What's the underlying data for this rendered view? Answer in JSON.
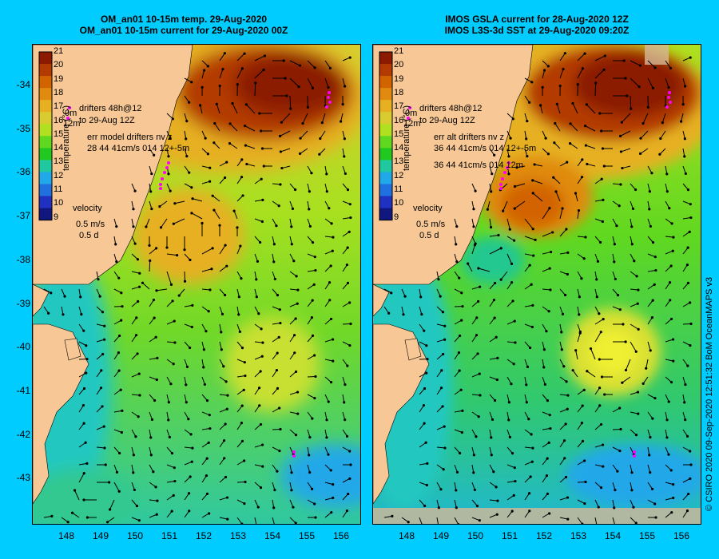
{
  "left_panel": {
    "title_line1": "OM_an01 10-15m temp. 29-Aug-2020",
    "title_line2": "OM_an01 10-15m current for 29-Aug-2020 00Z",
    "legend_drifters": "drifters 48h@12",
    "legend_to": "to 29-Aug 12Z",
    "err_line1": "err model drifters nv z",
    "err_line2": "28 44 41cm/s 014 12+-5m",
    "velocity_label": "velocity",
    "velocity_scale_speed": "0.5 m/s",
    "velocity_scale_time": "0.5 d",
    "colorbar_title": "temperature (°C)",
    "axis_side_label": "0m",
    "axis_side_label2": "12m"
  },
  "right_panel": {
    "title_line1": "IMOS GSLA current for 28-Aug-2020 12Z",
    "title_line2": "IMOS L3S-3d SST at 29-Aug-2020 09:20Z",
    "legend_drifters": "drifters 48h@12",
    "legend_to": "to 29-Aug 12Z",
    "err_line1": "err alt drifters nv z",
    "err_line2": "36 44 41cm/s 014 12+-5m",
    "err_line3": "36 44 41cm/s 014 12m",
    "velocity_label": "velocity",
    "velocity_scale_speed": "0.5 m/s",
    "velocity_scale_time": "0.5 d",
    "colorbar_title": "temperature (°C)",
    "axis_side_label": "0m",
    "axis_side_label2": "12m"
  },
  "colorbar": {
    "labels": [
      "21",
      "20",
      "19",
      "18",
      "17",
      "16",
      "15",
      "14",
      "13",
      "12",
      "11",
      "10",
      "9"
    ],
    "colors": [
      "#8b1a00",
      "#b33a00",
      "#d26400",
      "#e08a10",
      "#e6b020",
      "#d9cc30",
      "#b0e020",
      "#60d820",
      "#20c820",
      "#20c8a0",
      "#20a8e8",
      "#2070e0",
      "#2030c0",
      "#101880"
    ]
  },
  "axes": {
    "lat_labels": [
      "-34",
      "-35",
      "-36",
      "-37",
      "-38",
      "-39",
      "-40",
      "-41",
      "-42",
      "-43"
    ],
    "lon_labels": [
      "148",
      "149",
      "150",
      "151",
      "152",
      "153",
      "154",
      "155",
      "156"
    ]
  },
  "colors": {
    "background": "#00ccff",
    "land": "#f7c896",
    "drifter": "#ff00ff"
  },
  "copyright": "© CSIRO 2020   09-Sep-2020 12:51:32 BoM OceanMAPS v3"
}
